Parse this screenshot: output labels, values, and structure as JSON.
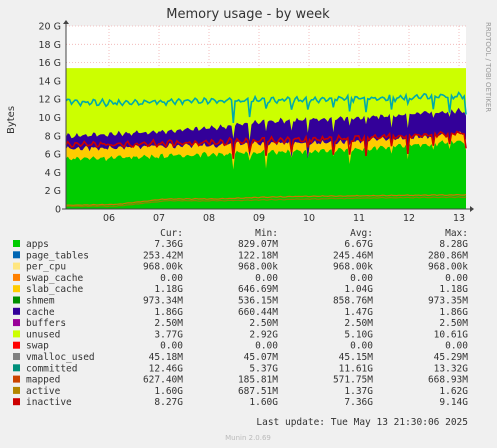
{
  "header": {
    "title": "Memory usage - by week",
    "side_label": "RRDTOOL / TOBI OETIKER"
  },
  "chart_data": {
    "type": "area",
    "title": "Memory usage - by week",
    "ylabel": "Bytes",
    "y_unit": "G",
    "ylim": [
      0,
      20
    ],
    "y_ticks": [
      0,
      2,
      4,
      6,
      8,
      10,
      12,
      14,
      16,
      18,
      20
    ],
    "y_tick_labels": [
      "0",
      "2 G",
      "4 G",
      "6 G",
      "8 G",
      "10 G",
      "12 G",
      "14 G",
      "16 G",
      "18 G",
      "20 G"
    ],
    "x_tick_labels": [
      "06",
      "07",
      "08",
      "09",
      "10",
      "11",
      "12",
      "13"
    ],
    "grid": true,
    "stacked_layers": [
      {
        "name": "apps",
        "color": "#00cc00",
        "approx_level_by_day": [
          5.5,
          5.6,
          5.8,
          6.0,
          6.2,
          6.3,
          6.6,
          7.0,
          7.4
        ]
      },
      {
        "name": "slab_cache",
        "color": "#ffcc00",
        "approx_level_by_day": [
          6.6,
          6.7,
          6.9,
          7.0,
          7.2,
          7.2,
          7.5,
          7.8,
          8.3
        ]
      },
      {
        "name": "cache",
        "color": "#330099",
        "approx_level_by_day": [
          8.0,
          8.2,
          8.5,
          8.9,
          9.6,
          9.8,
          10.0,
          10.4,
          10.8
        ]
      },
      {
        "name": "unused",
        "color": "#ccff00",
        "approx_level_by_day": [
          15.4,
          15.4,
          15.4,
          15.4,
          15.4,
          15.4,
          15.4,
          15.4,
          15.4
        ]
      }
    ],
    "line_series": [
      {
        "name": "committed",
        "color": "#00aaaa",
        "approx_level_by_day": [
          11.7,
          11.6,
          11.7,
          11.8,
          11.9,
          11.9,
          12.1,
          12.2,
          12.4
        ]
      },
      {
        "name": "inactive",
        "color": "#cc0000",
        "approx_level_by_day": [
          7.1,
          7.0,
          7.2,
          7.3,
          7.5,
          7.6,
          7.8,
          8.0,
          8.3
        ]
      },
      {
        "name": "mapped",
        "color": "#cc7700",
        "approx_level_by_day": [
          0.4,
          0.5,
          1.1,
          1.1,
          1.3,
          1.4,
          1.45,
          1.5,
          1.55
        ]
      },
      {
        "name": "active",
        "color": "#888800",
        "approx_level_by_day": [
          0.3,
          0.3,
          0.9,
          0.9,
          1.0,
          1.1,
          1.2,
          1.25,
          1.3
        ]
      }
    ]
  },
  "legend": {
    "col_headers": [
      "Cur:",
      "Min:",
      "Avg:",
      "Max:"
    ],
    "rows": [
      {
        "name": "apps",
        "color": "#00cc00",
        "cur": "7.36G",
        "min": "829.07M",
        "avg": "6.67G",
        "max": "8.28G"
      },
      {
        "name": "page_tables",
        "color": "#0066b3",
        "cur": "253.42M",
        "min": "122.18M",
        "avg": "245.46M",
        "max": "280.86M"
      },
      {
        "name": "per_cpu",
        "color": "#ffe680",
        "cur": "968.00k",
        "min": "968.00k",
        "avg": "968.00k",
        "max": "968.00k"
      },
      {
        "name": "swap_cache",
        "color": "#ff8000",
        "cur": "0.00",
        "min": "0.00",
        "avg": "0.00",
        "max": "0.00"
      },
      {
        "name": "slab_cache",
        "color": "#ffcc00",
        "cur": "1.18G",
        "min": "646.69M",
        "avg": "1.04G",
        "max": "1.18G"
      },
      {
        "name": "shmem",
        "color": "#008f00",
        "cur": "973.34M",
        "min": "536.15M",
        "avg": "858.76M",
        "max": "973.35M"
      },
      {
        "name": "cache",
        "color": "#330099",
        "cur": "1.86G",
        "min": "660.44M",
        "avg": "1.47G",
        "max": "1.86G"
      },
      {
        "name": "buffers",
        "color": "#990099",
        "cur": "2.50M",
        "min": "2.50M",
        "avg": "2.50M",
        "max": "2.50M"
      },
      {
        "name": "unused",
        "color": "#ccff00",
        "cur": "3.77G",
        "min": "2.92G",
        "avg": "5.10G",
        "max": "10.61G"
      },
      {
        "name": "swap",
        "color": "#ff0000",
        "cur": "0.00",
        "min": "0.00",
        "avg": "0.00",
        "max": "0.00"
      },
      {
        "name": "vmalloc_used",
        "color": "#808080",
        "cur": "45.18M",
        "min": "45.07M",
        "avg": "45.15M",
        "max": "45.29M"
      },
      {
        "name": "committed",
        "color": "#008f7a",
        "cur": "12.46G",
        "min": "5.37G",
        "avg": "11.61G",
        "max": "13.32G"
      },
      {
        "name": "mapped",
        "color": "#cc4400",
        "cur": "627.40M",
        "min": "185.81M",
        "avg": "571.75M",
        "max": "668.93M"
      },
      {
        "name": "active",
        "color": "#b38600",
        "cur": "1.60G",
        "min": "687.51M",
        "avg": "1.37G",
        "max": "1.62G"
      },
      {
        "name": "inactive",
        "color": "#cc0000",
        "cur": "8.27G",
        "min": "1.60G",
        "avg": "7.36G",
        "max": "9.14G"
      }
    ]
  },
  "footer": {
    "last_update": "Last update: Tue May 13 21:30:06 2025",
    "version": "Munin 2.0.69"
  }
}
